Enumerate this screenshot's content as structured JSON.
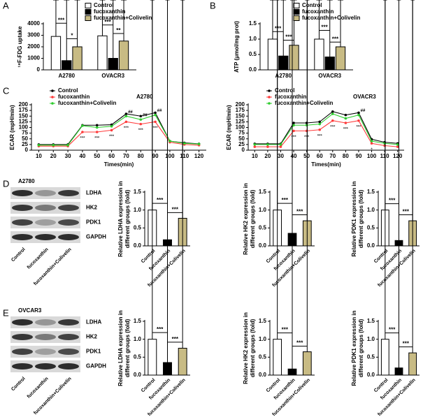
{
  "panels": [
    "A",
    "B",
    "C",
    "D",
    "E"
  ],
  "chart_data": [
    {
      "type": "bar",
      "ylabel": "¹⁸F-FDG uptake",
      "categories": [
        "A2780",
        "OVACR3"
      ],
      "series": [
        {
          "name": "Control",
          "color": "#ffffff",
          "values": [
            2900,
            2950
          ],
          "errors": [
            600,
            400
          ]
        },
        {
          "name": "fucoxanthin",
          "color": "#000000",
          "values": [
            800,
            1000
          ],
          "errors": [
            350,
            450
          ]
        },
        {
          "name": "fucoxanthin+Colivelin",
          "color": "#c8bb84",
          "values": [
            2000,
            2500
          ],
          "errors": [
            400,
            350
          ]
        }
      ],
      "ylim": [
        0,
        4000
      ],
      "yticks": [
        0,
        1000,
        2000,
        3000,
        4000
      ],
      "annotations": [
        "***",
        "*",
        "***",
        "**"
      ]
    },
    {
      "type": "bar",
      "ylabel": "ATP (μmol/mg prot)",
      "categories": [
        "A2780",
        "OVACR3"
      ],
      "series": [
        {
          "name": "Control",
          "color": "#ffffff",
          "values": [
            1.0,
            1.0
          ],
          "errors": [
            0.04,
            0.08
          ]
        },
        {
          "name": "fucoxanthin",
          "color": "#000000",
          "values": [
            0.45,
            0.42
          ],
          "errors": [
            0.04,
            0.05
          ]
        },
        {
          "name": "fucoxanthin+Colivelin",
          "color": "#c8bb84",
          "values": [
            0.8,
            0.75
          ],
          "errors": [
            0.05,
            0.04
          ]
        }
      ],
      "ylim": [
        0,
        1.5
      ],
      "yticks": [
        {
          "value": 0,
          "label": "0.0"
        },
        0.5,
        {
          "value": 1,
          "label": "1.0"
        },
        1.5
      ],
      "annotations": [
        "***",
        "***",
        "***",
        "***"
      ]
    },
    {
      "type": "line",
      "title": "A2780",
      "xlabel": "Times(min)",
      "ylabel": "ECAR (mpH/min)",
      "x": [
        10,
        20,
        30,
        40,
        50,
        60,
        70,
        80,
        90,
        100,
        110,
        120
      ],
      "series": [
        {
          "name": "Control",
          "color": "#000000",
          "values": [
            25,
            25,
            25,
            110,
            110,
            112,
            160,
            150,
            165,
            40,
            32,
            28
          ],
          "point_labels": [
            null,
            null,
            null,
            null,
            null,
            null,
            null,
            null,
            null,
            null,
            null,
            null
          ]
        },
        {
          "name": "fucoxanthin",
          "color": "#ff3b3b",
          "values": [
            18,
            18,
            18,
            80,
            80,
            88,
            125,
            115,
            125,
            35,
            25,
            22
          ],
          "point_labels": [
            null,
            null,
            null,
            "***",
            "***",
            "***",
            "***",
            "***",
            "***",
            null,
            null,
            null
          ]
        },
        {
          "name": "fucoxanthin+Colivelin",
          "color": "#2ecc2e",
          "values": [
            22,
            22,
            22,
            108,
            100,
            105,
            150,
            135,
            155,
            40,
            30,
            27
          ],
          "point_labels": [
            null,
            null,
            null,
            null,
            null,
            null,
            "##",
            "##",
            "##",
            null,
            null,
            null
          ]
        }
      ],
      "xlim": [
        5,
        125
      ],
      "xticks": [
        10,
        20,
        30,
        40,
        50,
        60,
        70,
        80,
        90,
        100,
        110,
        120
      ],
      "ylim": [
        0,
        200
      ],
      "yticks": [
        0,
        25,
        50,
        75,
        100,
        125,
        150,
        175,
        200
      ]
    },
    {
      "type": "line",
      "title": "OVACR3",
      "xlabel": "Times(min)",
      "ylabel": "ECAR (mpH/min)",
      "x": [
        10,
        20,
        30,
        40,
        50,
        60,
        70,
        80,
        90,
        100,
        110,
        120
      ],
      "series": [
        {
          "name": "Control",
          "color": "#000000",
          "values": [
            28,
            28,
            28,
            120,
            120,
            125,
            170,
            155,
            165,
            48,
            35,
            30
          ],
          "point_labels": [
            null,
            null,
            null,
            null,
            null,
            null,
            null,
            null,
            null,
            null,
            null,
            null
          ]
        },
        {
          "name": "fucoxanthin",
          "color": "#ff3b3b",
          "values": [
            15,
            15,
            15,
            85,
            85,
            90,
            130,
            120,
            130,
            30,
            20,
            15
          ],
          "point_labels": [
            null,
            null,
            null,
            "***",
            "***",
            "***",
            "***",
            "***",
            "***",
            "*",
            "*",
            null
          ]
        },
        {
          "name": "fucoxanthin+Colivelin",
          "color": "#2ecc2e",
          "values": [
            25,
            25,
            25,
            110,
            110,
            115,
            160,
            140,
            155,
            40,
            30,
            25
          ],
          "point_labels": [
            null,
            null,
            null,
            null,
            null,
            null,
            null,
            null,
            "##",
            null,
            null,
            null
          ]
        }
      ],
      "xlim": [
        5,
        125
      ],
      "xticks": [
        10,
        20,
        30,
        40,
        50,
        60,
        70,
        80,
        90,
        100,
        110,
        120
      ],
      "ylim": [
        0,
        200
      ],
      "yticks": [
        0,
        25,
        50,
        75,
        100,
        125,
        150,
        175,
        200
      ]
    },
    {
      "type": "bar",
      "ylabel": [
        "Relative LDHA expression in",
        "different groups (fold)"
      ],
      "categories": [
        "Control",
        "fucoxanthin",
        "fucoxanthin+Colivelin"
      ],
      "colors": [
        "#ffffff",
        "#000000",
        "#c8bb84"
      ],
      "values": [
        1.0,
        0.17,
        0.77
      ],
      "errors": [
        0.07,
        0.04,
        0.04
      ],
      "ylim": [
        0,
        1.5
      ],
      "yticks": [
        {
          "value": 0,
          "label": "0.0"
        },
        0.5,
        {
          "value": 1,
          "label": "1.0"
        },
        1.5
      ],
      "annotations": [
        "***",
        "***"
      ]
    },
    {
      "type": "bar",
      "ylabel": [
        "Relative HK2 expression in",
        "different groups (fold)"
      ],
      "categories": [
        "Control",
        "fucoxanthin",
        "fucoxanthin+Colivelin"
      ],
      "colors": [
        "#ffffff",
        "#000000",
        "#c8bb84"
      ],
      "values": [
        1.0,
        0.35,
        0.7
      ],
      "errors": [
        0.07,
        0.04,
        0.05
      ],
      "ylim": [
        0,
        1.5
      ],
      "yticks": [
        {
          "value": 0,
          "label": "0.0"
        },
        0.5,
        {
          "value": 1,
          "label": "1.0"
        },
        1.5
      ],
      "annotations": [
        "***",
        "***"
      ]
    },
    {
      "type": "bar",
      "ylabel": [
        "Relative PDK1 expression in",
        "different groups (fold)"
      ],
      "categories": [
        "Control",
        "fucoxanthin",
        "fucoxanthin+Colivelin"
      ],
      "colors": [
        "#ffffff",
        "#000000",
        "#c8bb84"
      ],
      "values": [
        1.0,
        0.15,
        0.7
      ],
      "errors": [
        0.06,
        0.04,
        0.05
      ],
      "ylim": [
        0,
        1.5
      ],
      "yticks": [
        {
          "value": 0,
          "label": "0.0"
        },
        0.5,
        {
          "value": 1,
          "label": "1.0"
        },
        1.5
      ],
      "annotations": [
        "***",
        "***"
      ]
    },
    {
      "type": "bar",
      "ylabel": [
        "Relative LDHA expression in",
        "different groups (fold)"
      ],
      "categories": [
        "Control",
        "fucoxanthin",
        "fucoxanthin+Colivelin"
      ],
      "colors": [
        "#ffffff",
        "#000000",
        "#c8bb84"
      ],
      "values": [
        1.0,
        0.35,
        0.75
      ],
      "errors": [
        0.07,
        0.05,
        0.05
      ],
      "ylim": [
        0,
        1.5
      ],
      "yticks": [
        {
          "value": 0,
          "label": "0.0"
        },
        0.5,
        {
          "value": 1,
          "label": "1.0"
        },
        1.5
      ],
      "annotations": [
        "***",
        "***"
      ]
    },
    {
      "type": "bar",
      "ylabel": [
        "Relative HK2 expression in",
        "different groups (fold)"
      ],
      "categories": [
        "Control",
        "fucoxanthin",
        "fucoxanthin+Colivelin"
      ],
      "colors": [
        "#ffffff",
        "#000000",
        "#c8bb84"
      ],
      "values": [
        1.0,
        0.17,
        0.65
      ],
      "errors": [
        0.06,
        0.04,
        0.04
      ],
      "ylim": [
        0,
        1.5
      ],
      "yticks": [
        {
          "value": 0,
          "label": "0.0"
        },
        0.5,
        {
          "value": 1,
          "label": "1.0"
        },
        1.5
      ],
      "annotations": [
        "***",
        "***"
      ]
    },
    {
      "type": "bar",
      "ylabel": [
        "Relative PDK1 expression in",
        "different groups (fold)"
      ],
      "categories": [
        "Control",
        "fucoxanthin",
        "fucoxanthin+Colivelin"
      ],
      "colors": [
        "#ffffff",
        "#000000",
        "#c8bb84"
      ],
      "values": [
        1.0,
        0.2,
        0.62
      ],
      "errors": [
        0.06,
        0.04,
        0.05
      ],
      "ylim": [
        0,
        1.5
      ],
      "yticks": [
        {
          "value": 0,
          "label": "0.0"
        },
        0.5,
        {
          "value": 1,
          "label": "1.0"
        },
        1.5
      ],
      "annotations": [
        "***",
        "***"
      ]
    }
  ],
  "blots": [
    {
      "cell_line": "A2780",
      "proteins": [
        "LDHA",
        "HK2",
        "PDK1",
        "GAPDH"
      ],
      "lanes": [
        "Control",
        "fucoxanthin",
        "fucoxanthin+Colivelin"
      ]
    },
    {
      "cell_line": "OVCAR3",
      "proteins": [
        "LDHA",
        "HK2",
        "PDK1",
        "GAPDH"
      ],
      "lanes": [
        "Control",
        "fucoxanthin",
        "fucoxanthin+Colivelin"
      ]
    }
  ]
}
